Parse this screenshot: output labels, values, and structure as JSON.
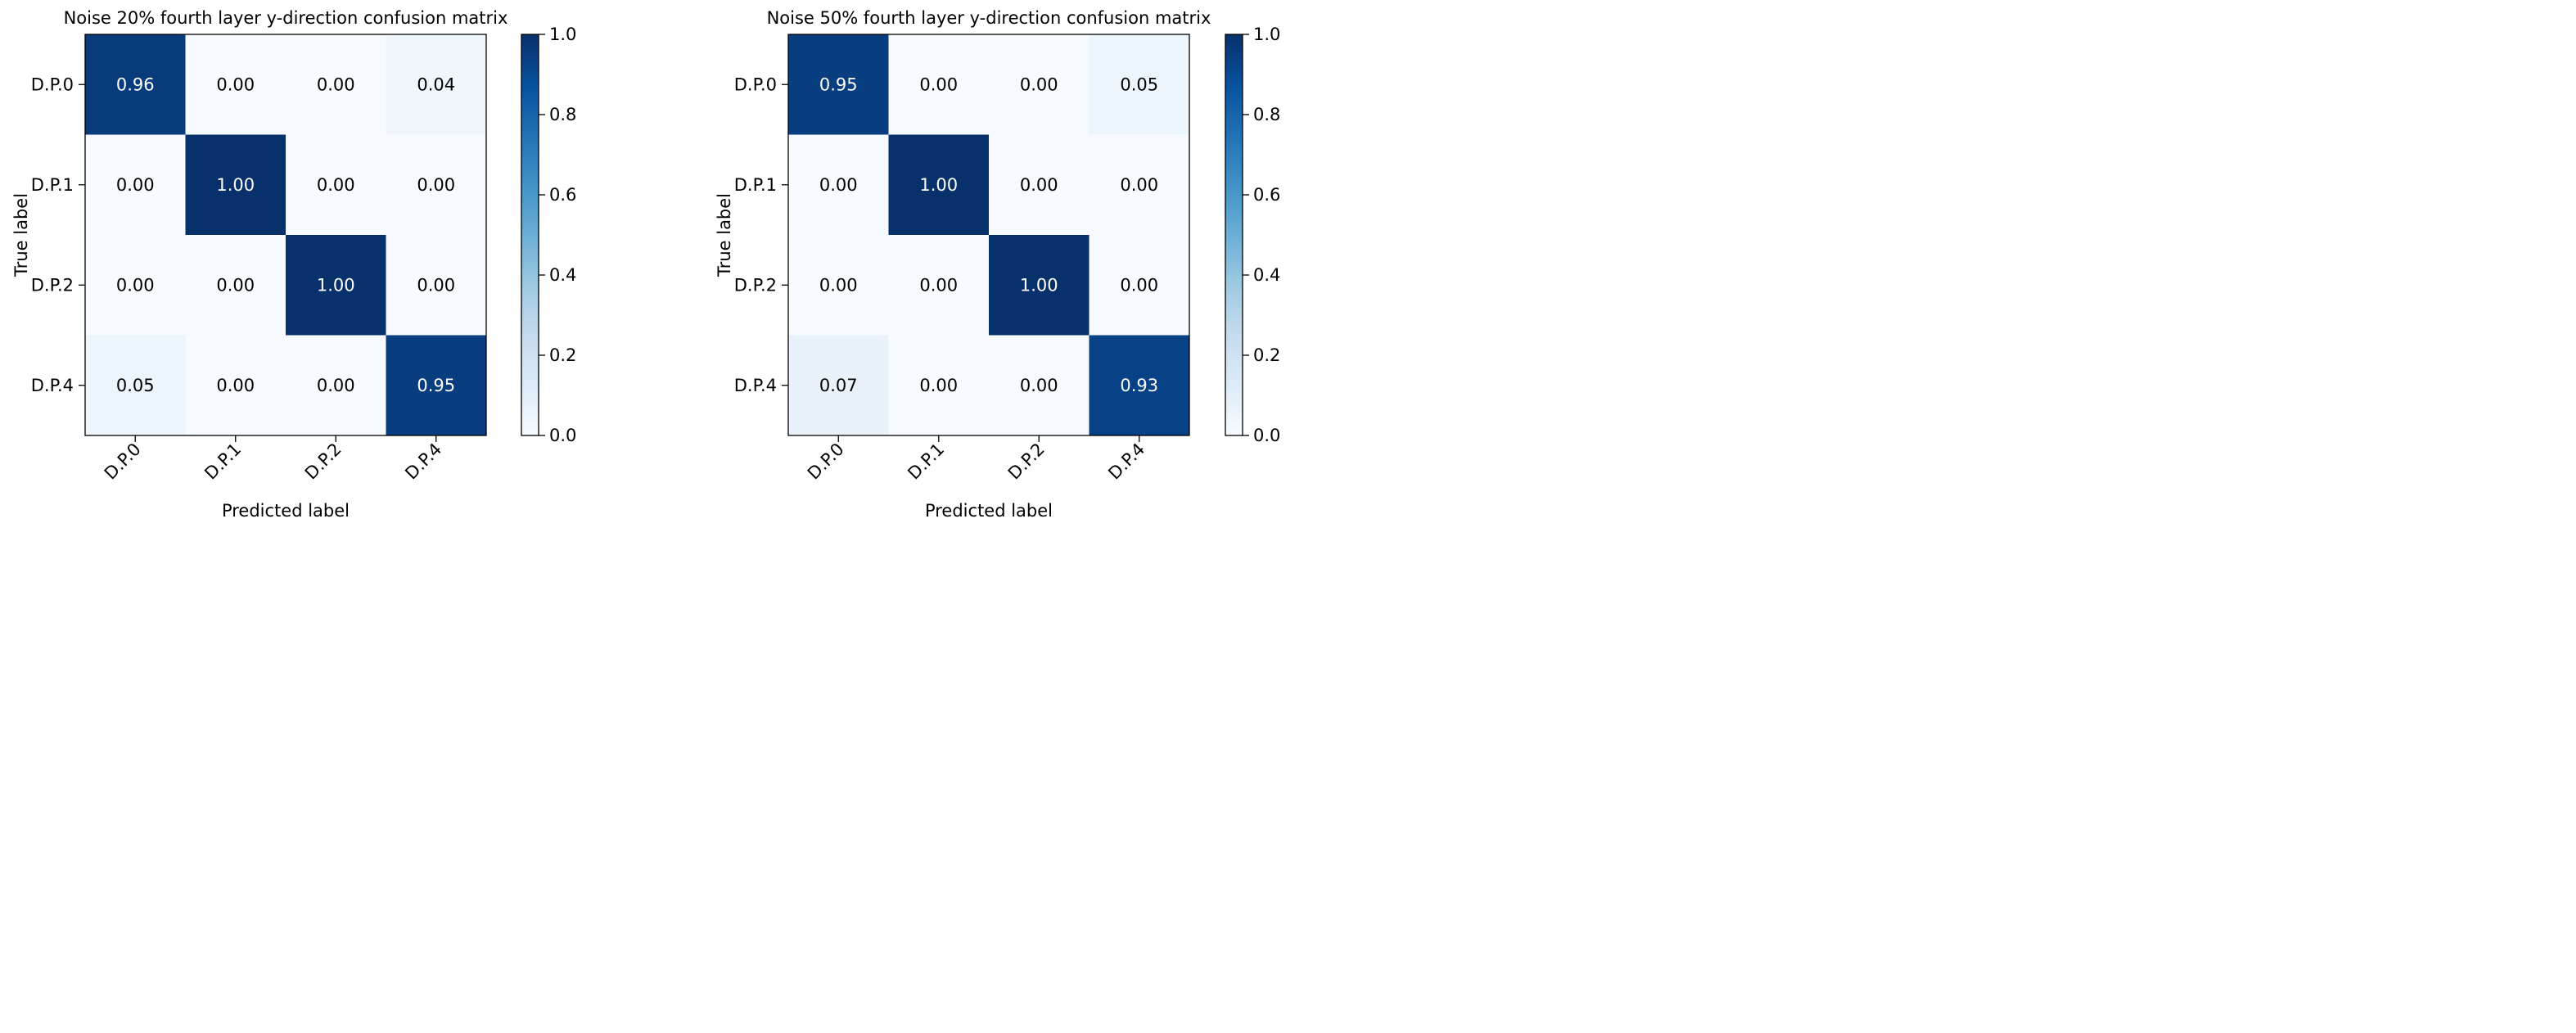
{
  "chart_data": [
    {
      "type": "heatmap",
      "title": "Noise 20% fourth layer y-direction confusion matrix",
      "xlabel": "Predicted label",
      "ylabel": "True label",
      "x_categories": [
        "D.P.0",
        "D.P.1",
        "D.P.2",
        "D.P.4"
      ],
      "y_categories": [
        "D.P.0",
        "D.P.1",
        "D.P.2",
        "D.P.4"
      ],
      "values": [
        [
          0.96,
          0.0,
          0.0,
          0.04
        ],
        [
          0.0,
          1.0,
          0.0,
          0.0
        ],
        [
          0.0,
          0.0,
          1.0,
          0.0
        ],
        [
          0.05,
          0.0,
          0.0,
          0.95
        ]
      ],
      "cell_labels": [
        [
          "0.96",
          "0.00",
          "0.00",
          "0.04"
        ],
        [
          "0.00",
          "1.00",
          "0.00",
          "0.00"
        ],
        [
          "0.00",
          "0.00",
          "1.00",
          "0.00"
        ],
        [
          "0.05",
          "0.00",
          "0.00",
          "0.95"
        ]
      ],
      "colorbar": {
        "range": [
          0.0,
          1.0
        ],
        "ticks": [
          0.0,
          0.2,
          0.4,
          0.6,
          0.8,
          1.0
        ],
        "tick_labels": [
          "0.0",
          "0.2",
          "0.4",
          "0.6",
          "0.8",
          "1.0"
        ]
      },
      "colormap": "Blues",
      "grid": false
    },
    {
      "type": "heatmap",
      "title": "Noise 50% fourth layer y-direction confusion matrix",
      "xlabel": "Predicted label",
      "ylabel": "True label",
      "x_categories": [
        "D.P.0",
        "D.P.1",
        "D.P.2",
        "D.P.4"
      ],
      "y_categories": [
        "D.P.0",
        "D.P.1",
        "D.P.2",
        "D.P.4"
      ],
      "values": [
        [
          0.95,
          0.0,
          0.0,
          0.05
        ],
        [
          0.0,
          1.0,
          0.0,
          0.0
        ],
        [
          0.0,
          0.0,
          1.0,
          0.0
        ],
        [
          0.07,
          0.0,
          0.0,
          0.93
        ]
      ],
      "cell_labels": [
        [
          "0.95",
          "0.00",
          "0.00",
          "0.05"
        ],
        [
          "0.00",
          "1.00",
          "0.00",
          "0.00"
        ],
        [
          "0.00",
          "0.00",
          "1.00",
          "0.00"
        ],
        [
          "0.07",
          "0.00",
          "0.00",
          "0.93"
        ]
      ],
      "colorbar": {
        "range": [
          0.0,
          1.0
        ],
        "ticks": [
          0.0,
          0.2,
          0.4,
          0.6,
          0.8,
          1.0
        ],
        "tick_labels": [
          "0.0",
          "0.2",
          "0.4",
          "0.6",
          "0.8",
          "1.0"
        ]
      },
      "colormap": "Blues",
      "grid": false
    }
  ]
}
